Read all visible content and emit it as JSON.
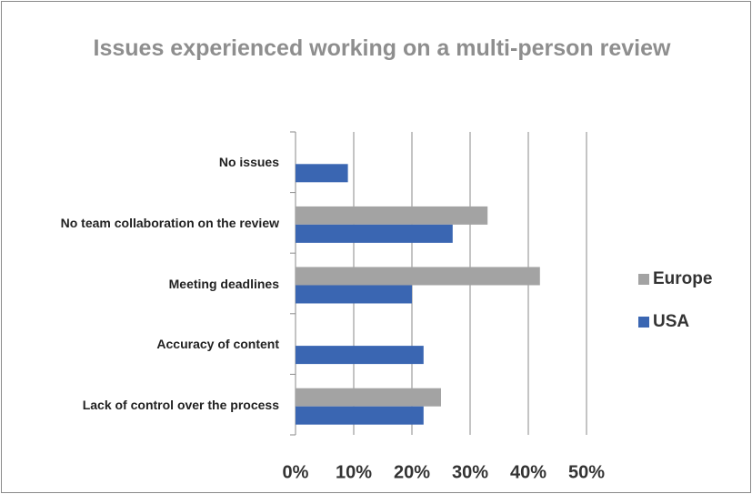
{
  "chart_data": {
    "type": "bar",
    "orientation": "horizontal",
    "title": "Issues experienced working on a multi-person review",
    "categories": [
      "No issues",
      "No team collaboration on the review",
      "Meeting deadlines",
      "Accuracy of content",
      "Lack of control over the process"
    ],
    "series": [
      {
        "name": "Europe",
        "color": "#a3a3a3",
        "values": [
          null,
          33,
          42,
          null,
          25
        ]
      },
      {
        "name": "USA",
        "color": "#3a66b2",
        "values": [
          9,
          27,
          20,
          22,
          22
        ]
      }
    ],
    "xlim": [
      0,
      50
    ],
    "xticks": [
      {
        "value": 0,
        "label": "0%"
      },
      {
        "value": 10,
        "label": "10%"
      },
      {
        "value": 20,
        "label": "20%"
      },
      {
        "value": 30,
        "label": "30%"
      },
      {
        "value": 40,
        "label": "40%"
      },
      {
        "value": 50,
        "label": "50%"
      }
    ],
    "grid": true,
    "legend": "right"
  }
}
